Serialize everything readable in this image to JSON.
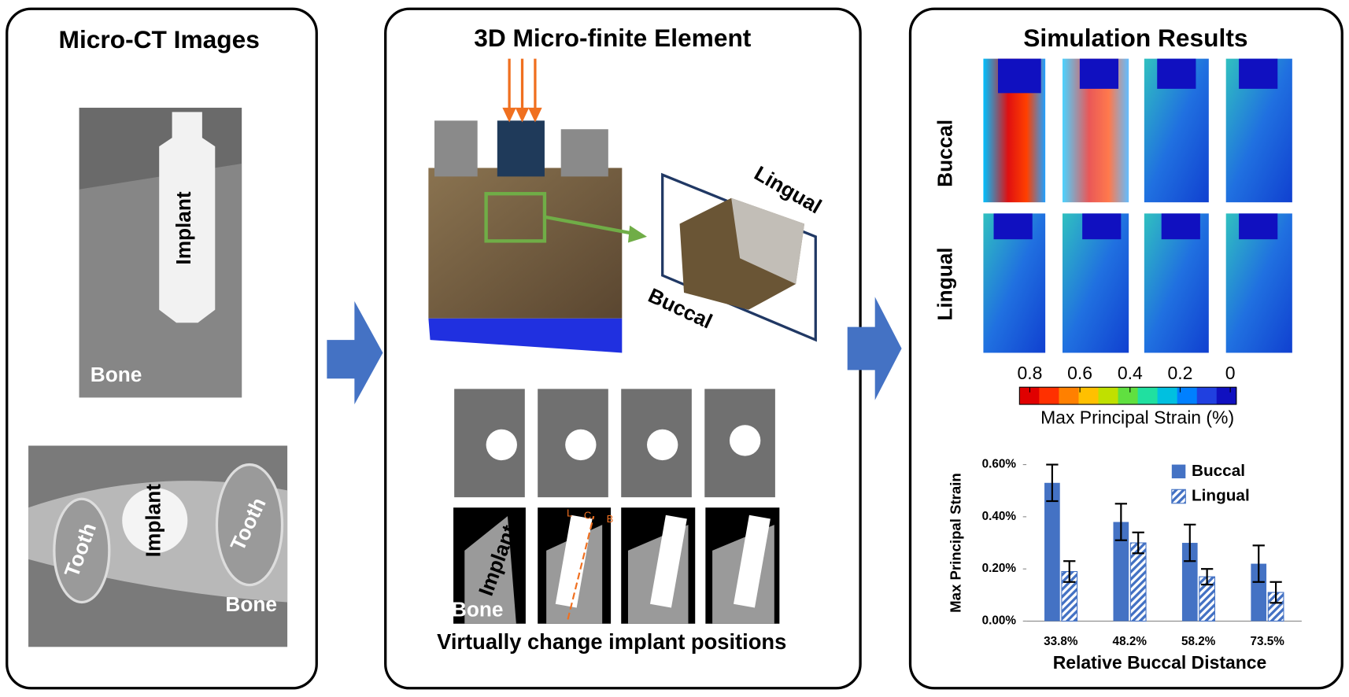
{
  "panels": [
    {
      "title": "Micro-CT Images",
      "labels": [
        "Implant",
        "Bone",
        "Tooth",
        "Implant",
        "Tooth",
        "Bone"
      ]
    },
    {
      "title": "3D Micro-finite Element",
      "labels": [
        "Lingual",
        "Buccal",
        "Implant",
        "Bone",
        "L",
        "C",
        "B"
      ],
      "caption": "Virtually change implant positions"
    },
    {
      "title": "Simulation Results",
      "rows": [
        "Buccal",
        "Lingual"
      ],
      "colorbar": {
        "ticks": [
          0.8,
          0.6,
          0.4,
          0.2,
          0
        ],
        "label": "Max Principal Strain (%)"
      }
    }
  ],
  "chart_data": {
    "type": "bar",
    "y_label": "Max Principal Strain",
    "x_label": "Relative Buccal Distance",
    "categories": [
      "33.8%",
      "48.2%",
      "58.2%",
      "73.5%"
    ],
    "series": [
      {
        "name": "Buccal",
        "color": "#4472c4",
        "values": [
          0.53,
          0.38,
          0.3,
          0.22
        ],
        "errors": [
          0.07,
          0.07,
          0.07,
          0.07
        ]
      },
      {
        "name": "Lingual",
        "color": "#4472c4",
        "hatch": true,
        "values": [
          0.19,
          0.3,
          0.17,
          0.11
        ],
        "errors": [
          0.04,
          0.04,
          0.03,
          0.04
        ]
      }
    ],
    "ylim": [
      0,
      0.6
    ],
    "yticks": [
      {
        "value": 0,
        "label": "0.00%"
      },
      {
        "value": 0.2,
        "label": "0.20%"
      },
      {
        "value": 0.4,
        "label": "0.40%"
      },
      {
        "value": 0.6,
        "label": "0.60%"
      }
    ]
  }
}
